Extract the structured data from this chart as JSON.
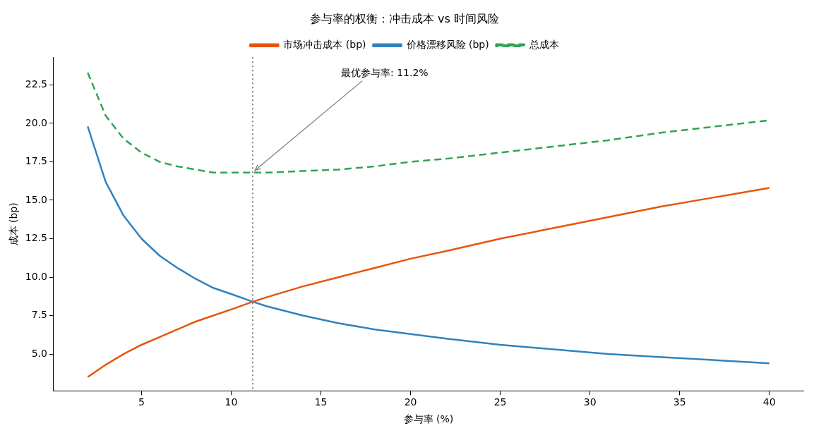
{
  "chart_data": {
    "type": "line",
    "title": "参与率的权衡：冲击成本 vs 时间风险",
    "xlabel": "参与率 (%)",
    "ylabel": "成本 (bp)",
    "x": [
      2,
      3,
      4,
      5,
      6,
      7,
      8,
      9,
      10,
      11.2,
      12,
      14,
      16,
      18,
      20,
      22,
      25,
      28,
      31,
      34,
      37,
      40
    ],
    "series": [
      {
        "name": "市场冲击成本 (bp)",
        "color": "#e6550d",
        "line_style": "solid",
        "values": [
          3.5,
          4.3,
          5.0,
          5.6,
          6.1,
          6.6,
          7.1,
          7.5,
          7.9,
          8.4,
          8.7,
          9.4,
          10.0,
          10.6,
          11.2,
          11.7,
          12.5,
          13.2,
          13.9,
          14.6,
          15.2,
          15.8
        ]
      },
      {
        "name": "价格漂移风险 (bp)",
        "color": "#3182bd",
        "line_style": "solid",
        "values": [
          19.8,
          16.2,
          14.0,
          12.5,
          11.4,
          10.6,
          9.9,
          9.3,
          8.9,
          8.4,
          8.1,
          7.5,
          7.0,
          6.6,
          6.3,
          6.0,
          5.6,
          5.3,
          5.0,
          4.8,
          4.6,
          4.4
        ]
      },
      {
        "name": "总成本",
        "color": "#31a354",
        "line_style": "dashed",
        "values": [
          23.3,
          20.5,
          19.0,
          18.1,
          17.5,
          17.2,
          17.0,
          16.8,
          16.8,
          16.8,
          16.8,
          16.9,
          17.0,
          17.2,
          17.5,
          17.7,
          18.1,
          18.5,
          18.9,
          19.4,
          19.8,
          20.2
        ]
      }
    ],
    "xlim": [
      0.1,
      41.9
    ],
    "xticks": [
      5,
      10,
      15,
      20,
      25,
      30,
      35,
      40
    ],
    "ylim": [
      2.6,
      24.3
    ],
    "yticks": [
      {
        "value": 5,
        "label": "5.0"
      },
      {
        "value": 7.5,
        "label": "7.5"
      },
      {
        "value": 10,
        "label": "10.0"
      },
      {
        "value": 12.5,
        "label": "12.5"
      },
      {
        "value": 15,
        "label": "15.0"
      },
      {
        "value": 17.5,
        "label": "17.5"
      },
      {
        "value": 20,
        "label": "20.0"
      },
      {
        "value": 22.5,
        "label": "22.5"
      }
    ],
    "ref_lines": [
      {
        "axis": "x",
        "value": 11.2,
        "color": "#808080",
        "line_style": "dotted"
      }
    ],
    "annotations": [
      {
        "text": "最优参与率: 11.2%",
        "x": 11.2,
        "y": 16.8
      }
    ],
    "grid": false,
    "legend": "top",
    "marker": "none"
  }
}
